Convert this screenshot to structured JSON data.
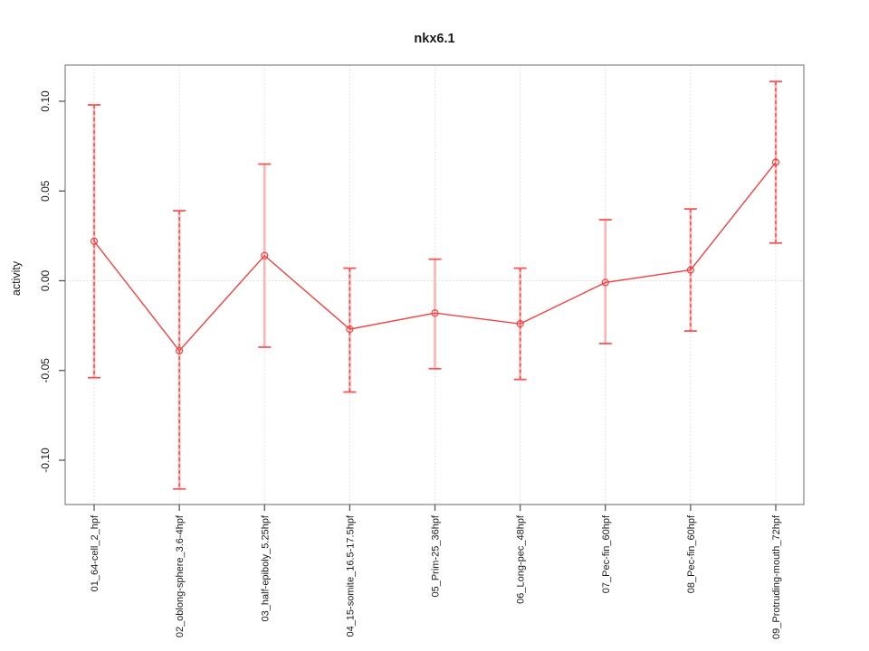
{
  "chart_data": {
    "type": "line",
    "title": "nkx6.1",
    "xlabel": "",
    "ylabel": "activity",
    "categories": [
      "01_64-cell_2_hpf",
      "02_oblong-sphere_3.6-4hpf",
      "03_half-epiboly_5.25hpf",
      "04_15-somite_16.5-17.5hpf",
      "05_Prim-25_36hpf",
      "06_Long-pec_48hpf",
      "07_Pec-fin_60hpf",
      "08_Pec-fin_60hpf",
      "09_Protruding-mouth_72hpf"
    ],
    "series": [
      {
        "name": "activity",
        "values": [
          0.022,
          -0.039,
          0.014,
          -0.027,
          -0.018,
          -0.024,
          -0.001,
          0.006,
          0.066
        ],
        "error_upper": [
          0.098,
          0.039,
          0.065,
          0.007,
          0.012,
          0.007,
          0.034,
          0.04,
          0.111
        ],
        "error_lower": [
          -0.054,
          -0.116,
          -0.037,
          -0.062,
          -0.049,
          -0.055,
          -0.035,
          -0.028,
          0.021
        ],
        "error_bar_styles": [
          "dashed",
          "dashed",
          "solid",
          "dashed",
          "solid",
          "dashed",
          "solid",
          "dashed",
          "dashed"
        ]
      }
    ],
    "y_ticks": [
      "-0.10",
      "-0.05",
      "0.00",
      "0.05",
      "0.10"
    ],
    "y_tick_values": [
      -0.1,
      -0.05,
      0.0,
      0.05,
      0.1
    ],
    "ylim": [
      -0.125,
      0.12
    ],
    "grid": {
      "vertical_at_categories": true,
      "horizontal_at_zero": true,
      "style": "dotted"
    },
    "marker": "open-circle",
    "legend": "none",
    "colors": {
      "line": "#f24141",
      "error_underlay": "#ffb3b3",
      "error_dash": "#ee3f3f",
      "cap": "#f75555",
      "grid": "#d9d9d9",
      "axis": "#5a5a5a",
      "box": "#8c8c8c",
      "text": "#1a1a1a",
      "background": "#ffffff"
    }
  }
}
